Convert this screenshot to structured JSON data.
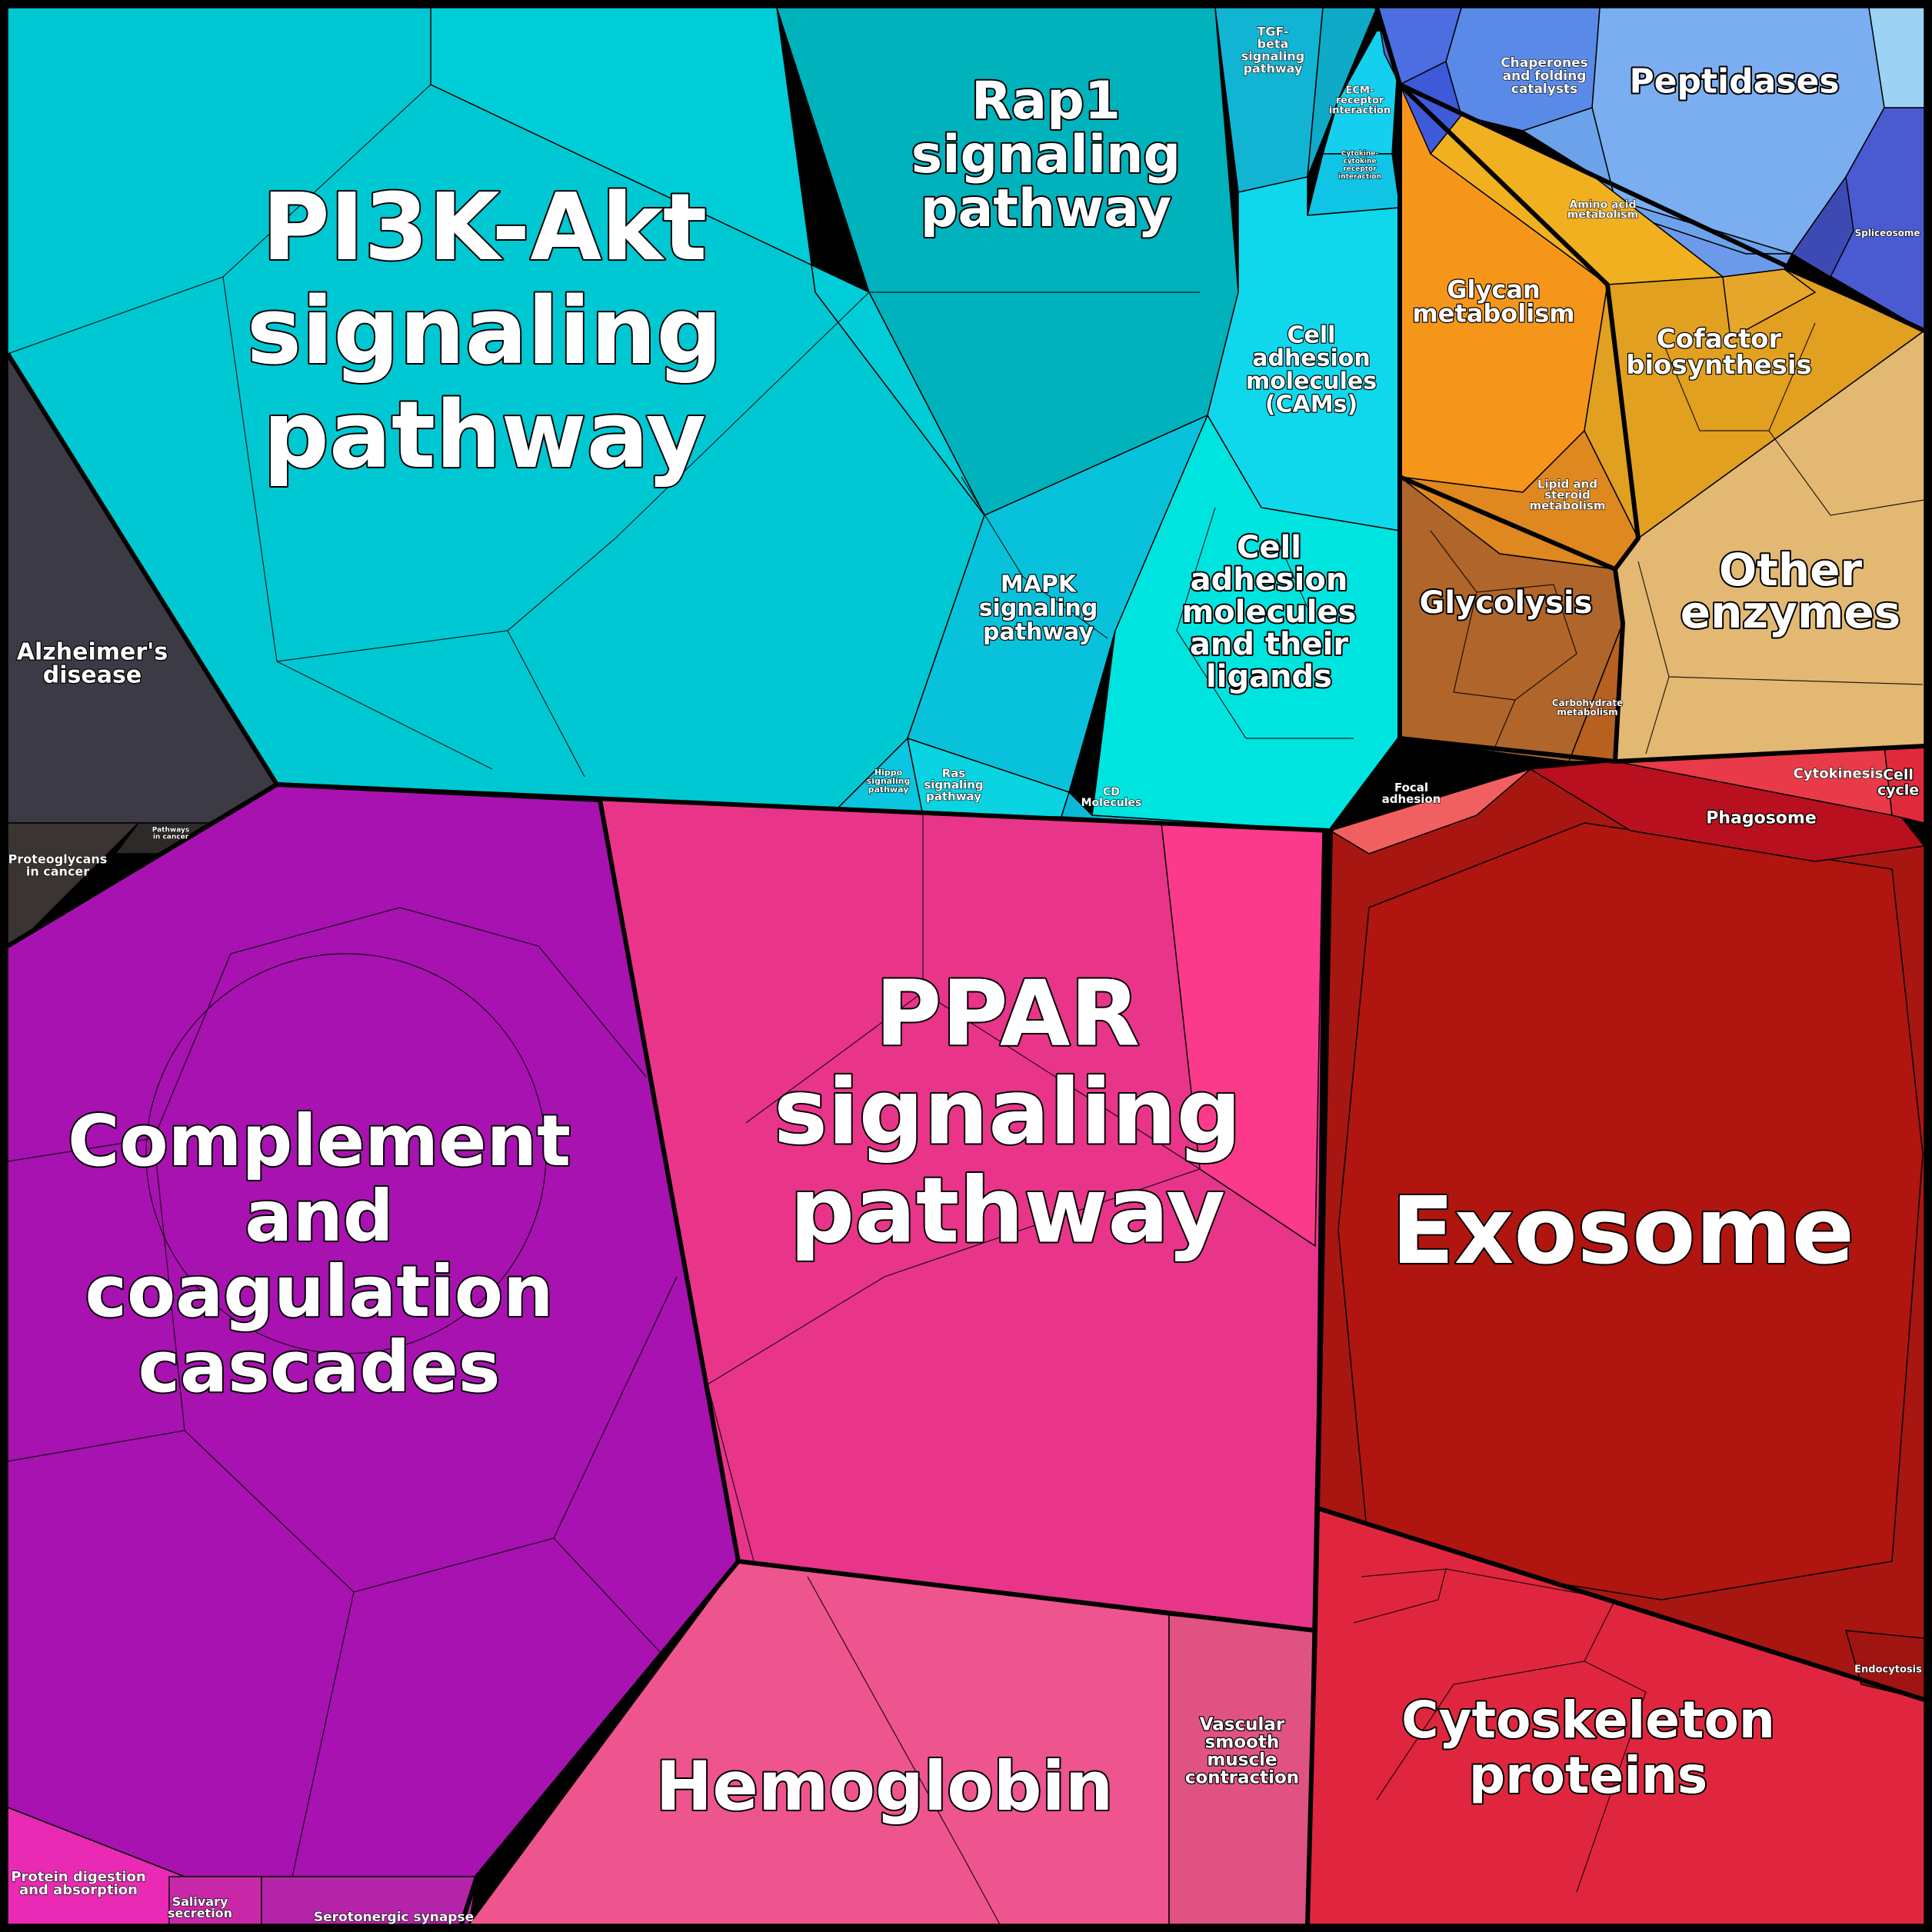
{
  "diagram": {
    "type": "voronoi-treemap",
    "groups": [
      {
        "id": "pi3k",
        "label": [
          "PI3K-Akt",
          "signaling",
          "pathway"
        ],
        "color": "#00c8d2"
      },
      {
        "id": "rap1",
        "label": [
          "Rap1",
          "signaling",
          "pathway"
        ],
        "color": "#00b2bc"
      },
      {
        "id": "mapk",
        "label": [
          "MAPK",
          "signaling",
          "pathway"
        ],
        "color": "#08c2dc"
      },
      {
        "id": "cams",
        "label": [
          "Cell",
          "adhesion",
          "molecules",
          "(CAMs)"
        ],
        "color": "#10d8ec"
      },
      {
        "id": "cell_adh_lig",
        "label": [
          "Cell",
          "adhesion",
          "molecules",
          "and their",
          "ligands"
        ],
        "color": "#00e4e0"
      },
      {
        "id": "tgf",
        "label": [
          "TGF-",
          "beta",
          "signaling",
          "pathway"
        ],
        "color": "#12b4d4"
      },
      {
        "id": "ecm",
        "label": [
          "ECM-",
          "receptor",
          "interaction"
        ],
        "color": "#14d0ee"
      },
      {
        "id": "cytokine",
        "label": [
          "Cytokine-",
          "cytokine",
          "receptor",
          "interaction"
        ],
        "color": "#14d0ee"
      },
      {
        "id": "hippo",
        "label": [
          "Hippo",
          "signaling",
          "pathway"
        ],
        "color": "#0ac6e0"
      },
      {
        "id": "ras",
        "label": [
          "Ras",
          "signaling",
          "pathway"
        ],
        "color": "#0ad4e2"
      },
      {
        "id": "cd",
        "label": [
          "CD",
          "Molecules"
        ],
        "color": "#0ab8d8"
      },
      {
        "id": "alz",
        "label": [
          "Alzheimer's",
          "disease"
        ],
        "color": "#3c3a44"
      },
      {
        "id": "proteo",
        "label": [
          "Proteoglycans",
          "in cancer"
        ],
        "color": "#3a3432"
      },
      {
        "id": "pathways_cancer",
        "label": [
          "Pathways",
          "in cancer"
        ],
        "color": "#2e2a28"
      },
      {
        "id": "complement",
        "label": [
          "Complement",
          "and",
          "coagulation",
          "cascades"
        ],
        "color": "#a812b0"
      },
      {
        "id": "ppar",
        "label": [
          "PPAR",
          "signaling",
          "pathway"
        ],
        "color": "#e8358a"
      },
      {
        "id": "hemoglobin",
        "label": [
          "Hemoglobin"
        ],
        "color": "#ee548e"
      },
      {
        "id": "vascular",
        "label": [
          "Vascular",
          "smooth",
          "muscle",
          "contraction"
        ],
        "color": "#e05282"
      },
      {
        "id": "exosome",
        "label": [
          "Exosome"
        ],
        "color": "#a81612"
      },
      {
        "id": "cytoskeleton",
        "label": [
          "Cytoskeleton",
          "proteins"
        ],
        "color": "#e0263e"
      },
      {
        "id": "phagosome",
        "label": [
          "Phagosome"
        ],
        "color": "#b8101e"
      },
      {
        "id": "cytokinesis",
        "label": [
          "Cytokinesis"
        ],
        "color": "#e83a48"
      },
      {
        "id": "cellcycle",
        "label": [
          "Cell",
          "cycle"
        ],
        "color": "#e02a3c"
      },
      {
        "id": "endocytosis",
        "label": [
          "Endocytosis"
        ],
        "color": "#a01412"
      },
      {
        "id": "focal",
        "label": [
          "Focal",
          "adhesion"
        ],
        "color": "#f06060"
      },
      {
        "id": "peptidases",
        "label": [
          "Peptidases"
        ],
        "color": "#7aaef0"
      },
      {
        "id": "chaperones",
        "label": [
          "Chaperones",
          "and folding",
          "catalysts"
        ],
        "color": "#5a8ae8"
      },
      {
        "id": "spliceosome",
        "label": [
          "Spliceosome"
        ],
        "color": "#4a5ad0"
      },
      {
        "id": "glycan",
        "label": [
          "Glycan",
          "metabolism"
        ],
        "color": "#f5961a"
      },
      {
        "id": "cofactor",
        "label": [
          "Cofactor",
          "biosynthesis"
        ],
        "color": "#e2a020"
      },
      {
        "id": "aminoacid",
        "label": [
          "Amino acid",
          "metabolism"
        ],
        "color": "#f0b020"
      },
      {
        "id": "lipid",
        "label": [
          "Lipid and",
          "steroid",
          "metabolism"
        ],
        "color": "#e08820"
      },
      {
        "id": "glycolysis",
        "label": [
          "Glycolysis"
        ],
        "color": "#b0662a"
      },
      {
        "id": "carbo",
        "label": [
          "Carbohydrate",
          "metabolism"
        ],
        "color": "#b86020"
      },
      {
        "id": "other_enz",
        "label": [
          "Other",
          "enzymes"
        ],
        "color": "#e2b872"
      },
      {
        "id": "protein_dig",
        "label": [
          "Protein digestion",
          "and absorption"
        ],
        "color": "#e82ab4"
      },
      {
        "id": "salivary",
        "label": [
          "Salivary",
          "secretion"
        ],
        "color": "#c828a8"
      },
      {
        "id": "serotonergic",
        "label": [
          "Serotonergic synapse"
        ],
        "color": "#b424a8"
      }
    ]
  }
}
